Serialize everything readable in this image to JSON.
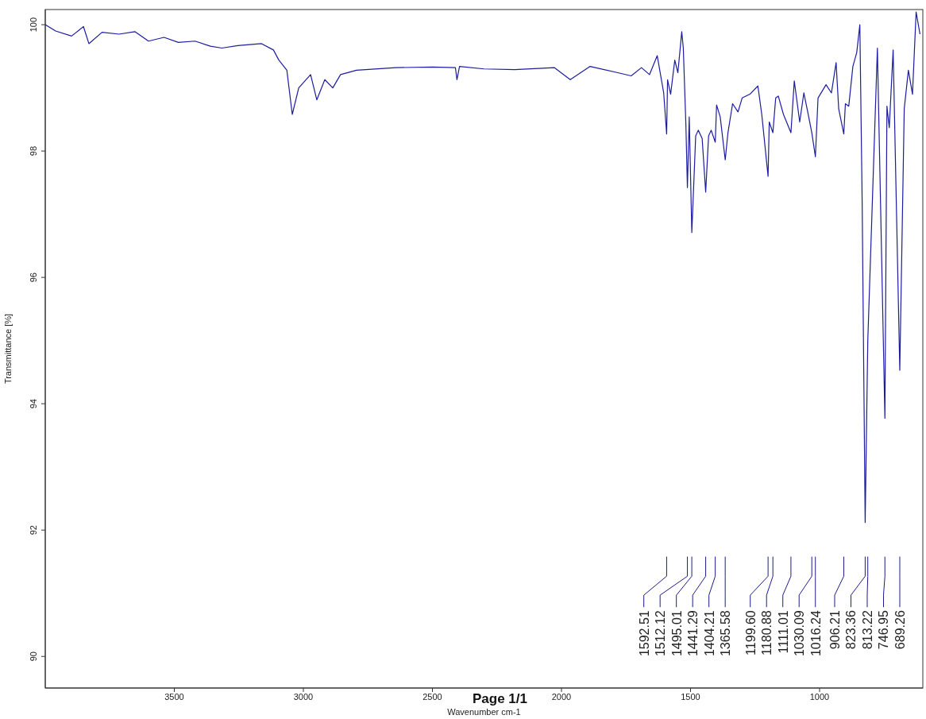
{
  "chart_data": {
    "type": "line",
    "xlabel": "Wavenumber cm-1",
    "ylabel": "Transmittance [%]",
    "xlim": [
      4000,
      600
    ],
    "ylim": [
      89.5,
      100.24
    ],
    "xticks": [
      3500,
      3000,
      2500,
      2000,
      1500,
      1000
    ],
    "yticks": [
      90,
      92,
      94,
      96,
      98,
      100
    ],
    "x": [
      4000,
      3960,
      3898,
      3852,
      3831,
      3780,
      3714,
      3653,
      3600,
      3540,
      3484,
      3420,
      3360,
      3316,
      3254,
      3162,
      3116,
      3095,
      3064,
      3043,
      3018,
      2972,
      2948,
      2917,
      2886,
      2856,
      2794,
      2641,
      2500,
      2411,
      2405,
      2395,
      2300,
      2181,
      2027,
      1966,
      1889,
      1782,
      1730,
      1690,
      1659,
      1629,
      1604,
      1592.51,
      1589,
      1577,
      1561,
      1549,
      1534,
      1528,
      1518,
      1512.12,
      1505,
      1495.01,
      1480,
      1470,
      1455,
      1441.29,
      1430,
      1420,
      1404.21,
      1399,
      1385,
      1365.58,
      1355,
      1337,
      1316,
      1300,
      1270,
      1239,
      1224,
      1199.6,
      1195,
      1180.88,
      1170,
      1160,
      1140,
      1111.01,
      1098,
      1077,
      1061,
      1045,
      1030.09,
      1016.24,
      1006,
      975,
      954,
      936,
      926,
      906.21,
      900,
      887,
      871,
      856,
      844,
      835,
      823.36,
      813.22,
      776,
      746.95,
      739,
      730,
      715,
      689.26,
      672,
      656,
      640,
      626,
      611
    ],
    "series": [
      {
        "color": "#1c1ca0",
        "values": [
          100.0,
          99.9,
          99.82,
          99.97,
          99.7,
          99.88,
          99.85,
          99.89,
          99.74,
          99.8,
          99.72,
          99.74,
          99.66,
          99.63,
          99.67,
          99.7,
          99.6,
          99.44,
          99.28,
          98.58,
          99.0,
          99.21,
          98.81,
          99.13,
          99.0,
          99.21,
          99.28,
          99.32,
          99.33,
          99.32,
          99.13,
          99.34,
          99.3,
          99.29,
          99.32,
          99.13,
          99.34,
          99.24,
          99.19,
          99.32,
          99.21,
          99.51,
          98.92,
          98.27,
          99.13,
          98.9,
          99.44,
          99.24,
          99.89,
          99.63,
          98.42,
          97.42,
          98.54,
          96.71,
          98.24,
          98.33,
          98.2,
          97.35,
          98.24,
          98.33,
          98.14,
          98.73,
          98.54,
          97.86,
          98.29,
          98.75,
          98.62,
          98.84,
          98.9,
          99.03,
          98.58,
          97.6,
          98.46,
          98.29,
          98.84,
          98.87,
          98.58,
          98.29,
          99.11,
          98.46,
          98.92,
          98.6,
          98.29,
          97.91,
          98.84,
          99.05,
          98.92,
          99.4,
          98.67,
          98.27,
          98.75,
          98.71,
          99.34,
          99.56,
          100.0,
          97.19,
          92.12,
          95.0,
          99.63,
          93.77,
          98.71,
          98.37,
          99.6,
          94.53,
          98.67,
          99.28,
          98.9,
          100.2,
          99.85
        ]
      }
    ],
    "annotations": [
      {
        "text": "1592.51",
        "x": 1592.51
      },
      {
        "text": "1512.12",
        "x": 1512.12
      },
      {
        "text": "1495.01",
        "x": 1495.01
      },
      {
        "text": "1441.29",
        "x": 1441.29
      },
      {
        "text": "1404.21",
        "x": 1404.21
      },
      {
        "text": "1365.58",
        "x": 1365.58
      },
      {
        "text": "1199.60",
        "x": 1199.6
      },
      {
        "text": "1180.88",
        "x": 1180.88
      },
      {
        "text": "1111.01",
        "x": 1111.01
      },
      {
        "text": "1030.09",
        "x": 1030.09
      },
      {
        "text": "1016.24",
        "x": 1016.24
      },
      {
        "text": "906.21",
        "x": 906.21
      },
      {
        "text": "823.36",
        "x": 823.36
      },
      {
        "text": "813.22",
        "x": 813.22
      },
      {
        "text": "746.95",
        "x": 746.95
      },
      {
        "text": "689.26",
        "x": 689.26
      },
      "Page 1/1"
    ]
  }
}
